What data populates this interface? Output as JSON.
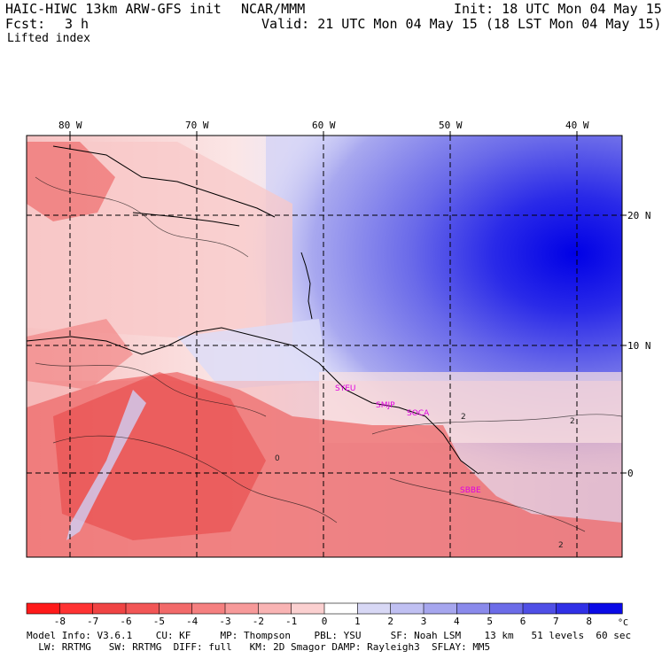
{
  "header": {
    "model": "HAIC-HIWC 13km ARW-GFS init",
    "org": "NCAR/MMM",
    "init": "Init: 18 UTC Mon 04 May 15",
    "fcst_label": "Fcst:",
    "fcst_value": "3 h",
    "valid": "Valid: 21 UTC Mon 04 May 15 (18 LST Mon 04 May 15)",
    "field": "Lifted index"
  },
  "map": {
    "lon_labels": [
      "80 W",
      "70 W",
      "60 W",
      "50 W",
      "40 W"
    ],
    "lat_labels": [
      "20 N",
      "10 N",
      "0"
    ],
    "stations": [
      "SYEU",
      "SMJP",
      "SOCA",
      "SBBE"
    ],
    "contour_labels": [
      "2",
      "2",
      "2",
      "0"
    ]
  },
  "colorbar": {
    "ticks": [
      "-8",
      "-7",
      "-6",
      "-5",
      "-4",
      "-3",
      "-2",
      "-1",
      "0",
      "1",
      "2",
      "3",
      "4",
      "5",
      "6",
      "7",
      "8"
    ],
    "unit": "°C",
    "colors": [
      "#ff1a1a",
      "#ff3333",
      "#f04444",
      "#f25656",
      "#f26a6a",
      "#f58080",
      "#f79a9a",
      "#f9b4b4",
      "#fbd0d0",
      "#ffffff",
      "#d8d8f5",
      "#c0c0f2",
      "#a6a6ee",
      "#8a8aeb",
      "#6c6ce8",
      "#4f4fe6",
      "#3030e6",
      "#0a0ae6"
    ]
  },
  "footer": {
    "line1": "Model Info: V3.6.1    CU: KF     MP: Thompson    PBL: YSU     SF: Noah LSM    13 km   51 levels  60 sec",
    "line2": "  LW: RRTMG   SW: RRTMG  DIFF: full   KM: 2D Smagor DAMP: Rayleigh3  SFLAY: MM5"
  }
}
